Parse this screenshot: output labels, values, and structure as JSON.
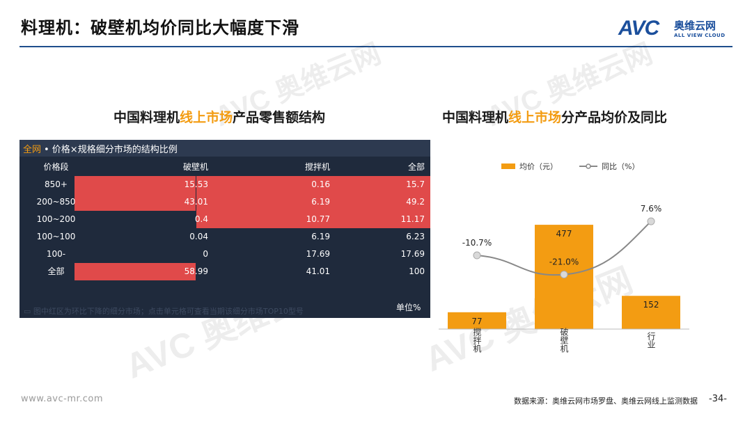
{
  "page": {
    "title": "料理机：破壁机均价同比大幅度下滑",
    "logo": {
      "mark": "AVC",
      "cn": "奥维云网",
      "en": "ALL VIEW CLOUD"
    },
    "watermark": {
      "mark": "AVC",
      "cn": "奥维云网",
      "en": "ALL VIEW CLOUD"
    },
    "footer": {
      "url": "www.avc-mr.com",
      "source": "数据来源：奥维云网市场罗盘、奥维云网线上监测数据",
      "page_num": "-34-"
    },
    "accent_color": "#f39c12",
    "brand_color": "#1b4f9c"
  },
  "left": {
    "title_a": "中国料理机",
    "title_hl": "线上市场",
    "title_b": "产品零售额结构",
    "panel_header_seg": "全网",
    "panel_header_rest": " • 价格×规格细分市场的结构比例",
    "note": "图中红区为环比下降的细分市场；点击单元格可查看当期该细分市场TOP10型号",
    "unit": "单位%",
    "highlight_color": "#e04a4a"
  },
  "chart_data": [
    {
      "type": "table",
      "columns": [
        "价格段",
        "破壁机",
        "搅拌机",
        "全部"
      ],
      "rows": [
        {
          "cells": [
            "850+",
            "15.53",
            "0.16",
            "15.7"
          ],
          "highlight": [
            false,
            true,
            true,
            true
          ]
        },
        {
          "cells": [
            "200~850",
            "43.01",
            "6.19",
            "49.2"
          ],
          "highlight": [
            false,
            true,
            true,
            true
          ]
        },
        {
          "cells": [
            "100~200",
            "0.4",
            "10.77",
            "11.17"
          ],
          "highlight": [
            false,
            false,
            true,
            true
          ]
        },
        {
          "cells": [
            "100~100",
            "0.04",
            "6.19",
            "6.23"
          ],
          "highlight": [
            false,
            false,
            false,
            false
          ]
        },
        {
          "cells": [
            "100-",
            "0",
            "17.69",
            "17.69"
          ],
          "highlight": [
            false,
            false,
            false,
            false
          ]
        },
        {
          "cells": [
            "全部",
            "58.99",
            "41.01",
            "100"
          ],
          "highlight": [
            false,
            true,
            false,
            false
          ]
        }
      ]
    },
    {
      "type": "bar",
      "title_a": "中国料理机",
      "title_hl": "线上市场",
      "title_b": "分产品均价及同比",
      "categories": [
        "搅拌机",
        "破壁机",
        "行业"
      ],
      "series": [
        {
          "name": "均价（元）",
          "kind": "bar",
          "color": "#f39c12",
          "values": [
            77,
            477,
            152
          ],
          "labels": [
            "77",
            "477",
            "152"
          ]
        },
        {
          "name": "同比（%）",
          "kind": "line",
          "color": "#888888",
          "values": [
            -10.7,
            -21.0,
            7.6
          ],
          "labels": [
            "-10.7%",
            "-21.0%",
            "7.6%"
          ]
        }
      ],
      "ylim_bar": [
        0,
        560
      ],
      "ylim_line": [
        -32,
        11
      ],
      "legend": "top",
      "grid": false
    }
  ]
}
